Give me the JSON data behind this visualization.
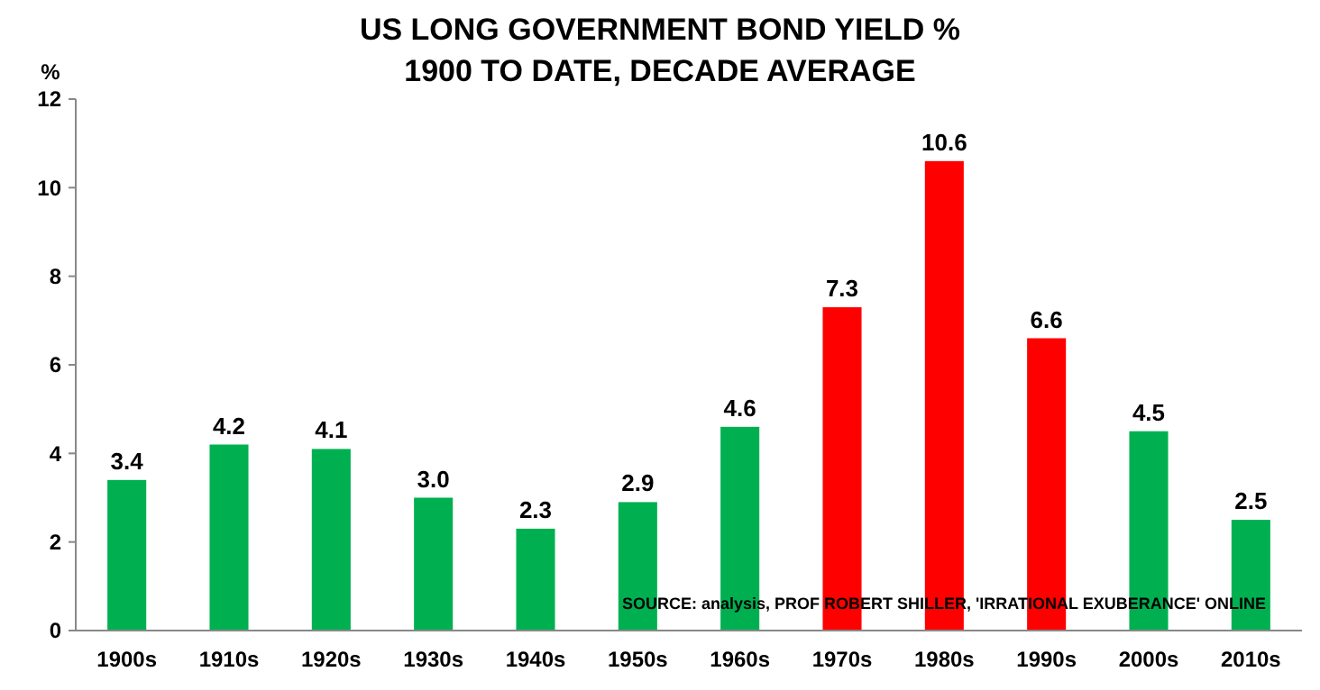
{
  "chart_data": {
    "type": "bar",
    "title": "US LONG GOVERNMENT BOND YIELD %",
    "subtitle": "1900 TO DATE, DECADE AVERAGE",
    "ylabel": "%",
    "categories": [
      "1900s",
      "1910s",
      "1920s",
      "1930s",
      "1940s",
      "1950s",
      "1960s",
      "1970s",
      "1980s",
      "1990s",
      "2000s",
      "2010s"
    ],
    "values": [
      3.4,
      4.2,
      4.1,
      3.0,
      2.3,
      2.9,
      4.6,
      7.3,
      10.6,
      6.6,
      4.5,
      2.5
    ],
    "value_labels": [
      "3.4",
      "4.2",
      "4.1",
      "3.0",
      "2.3",
      "2.9",
      "4.6",
      "7.3",
      "10.6",
      "6.6",
      "4.5",
      "2.5"
    ],
    "colors": [
      "#00b050",
      "#00b050",
      "#00b050",
      "#00b050",
      "#00b050",
      "#00b050",
      "#00b050",
      "#ff0000",
      "#ff0000",
      "#ff0000",
      "#00b050",
      "#00b050"
    ],
    "ylim": [
      0,
      12
    ],
    "yticks": [
      0,
      2,
      4,
      6,
      8,
      10,
      12
    ],
    "annotations": [
      "SOURCE: analysis, PROF ROBERT SHILLER, 'IRRATIONAL EXUBERANCE' ONLINE"
    ]
  }
}
